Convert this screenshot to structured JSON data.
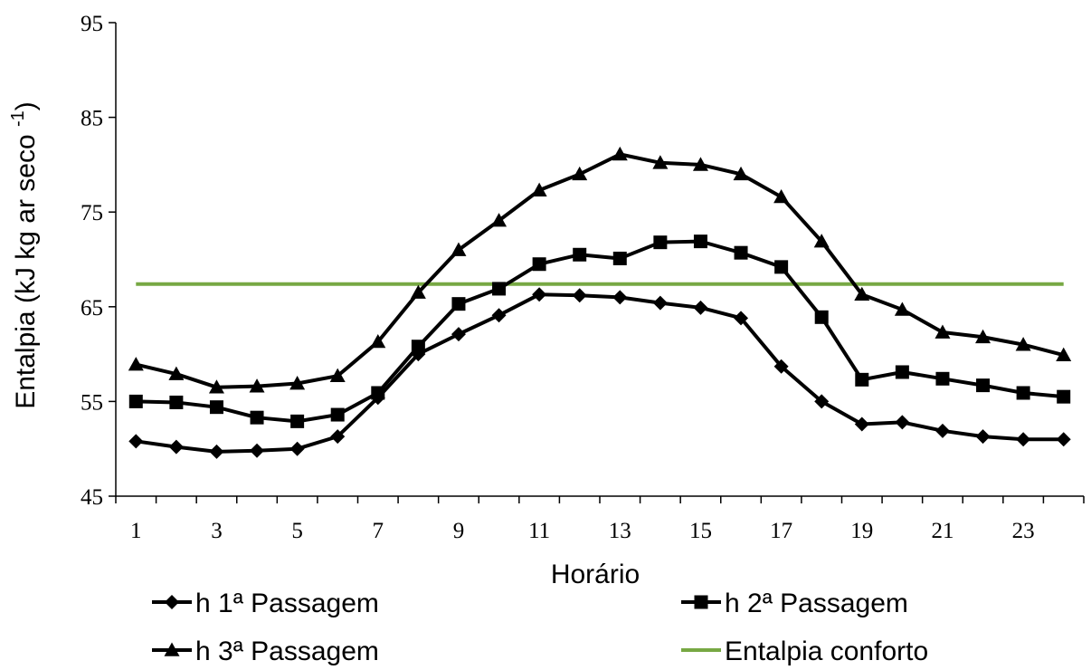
{
  "chart_data": {
    "type": "line",
    "xlabel": "Horário",
    "ylabel": "Entalpia (kJ kg ar seco ",
    "ylabel_sup": "-1",
    "ylabel_close": ")",
    "ylim": [
      45,
      95
    ],
    "yticks": [
      45,
      55,
      65,
      75,
      85,
      95
    ],
    "xlim": [
      1,
      24
    ],
    "xtick_labels": [
      1,
      3,
      5,
      7,
      9,
      11,
      13,
      15,
      17,
      19,
      21,
      23
    ],
    "x": [
      1,
      2,
      3,
      4,
      5,
      6,
      7,
      8,
      9,
      10,
      11,
      12,
      13,
      14,
      15,
      16,
      17,
      18,
      19,
      20,
      21,
      22,
      23,
      24
    ],
    "grid": false,
    "legend_position": "bottom",
    "series": [
      {
        "name": "h 1ª Passagem",
        "marker": "diamond",
        "color": "#000000",
        "values": [
          50.8,
          50.2,
          49.7,
          49.8,
          50.0,
          51.3,
          55.4,
          60.0,
          62.1,
          64.1,
          66.3,
          66.2,
          66.0,
          65.4,
          64.9,
          63.8,
          58.7,
          55.0,
          52.6,
          52.8,
          51.9,
          51.3,
          51.0,
          51.0
        ]
      },
      {
        "name": "h 2ª Passagem",
        "marker": "square",
        "color": "#000000",
        "values": [
          55.0,
          54.9,
          54.4,
          53.3,
          52.9,
          53.6,
          55.9,
          60.8,
          65.3,
          66.9,
          69.5,
          70.5,
          70.1,
          71.8,
          71.9,
          70.7,
          69.2,
          63.9,
          57.3,
          58.1,
          57.4,
          56.7,
          55.9,
          55.5
        ]
      },
      {
        "name": "h 3ª Passagem",
        "marker": "triangle",
        "color": "#000000",
        "values": [
          58.9,
          57.9,
          56.5,
          56.6,
          56.9,
          57.7,
          61.3,
          66.5,
          71.0,
          74.1,
          77.3,
          79.0,
          81.1,
          80.2,
          80.0,
          79.0,
          76.6,
          71.9,
          66.3,
          64.7,
          62.3,
          61.8,
          61.0,
          59.9
        ]
      },
      {
        "name": "Entalpia conforto",
        "marker": "none",
        "color": "#77a843",
        "values": [
          67.4,
          67.4,
          67.4,
          67.4,
          67.4,
          67.4,
          67.4,
          67.4,
          67.4,
          67.4,
          67.4,
          67.4,
          67.4,
          67.4,
          67.4,
          67.4,
          67.4,
          67.4,
          67.4,
          67.4,
          67.4,
          67.4,
          67.4,
          67.4
        ]
      }
    ]
  }
}
